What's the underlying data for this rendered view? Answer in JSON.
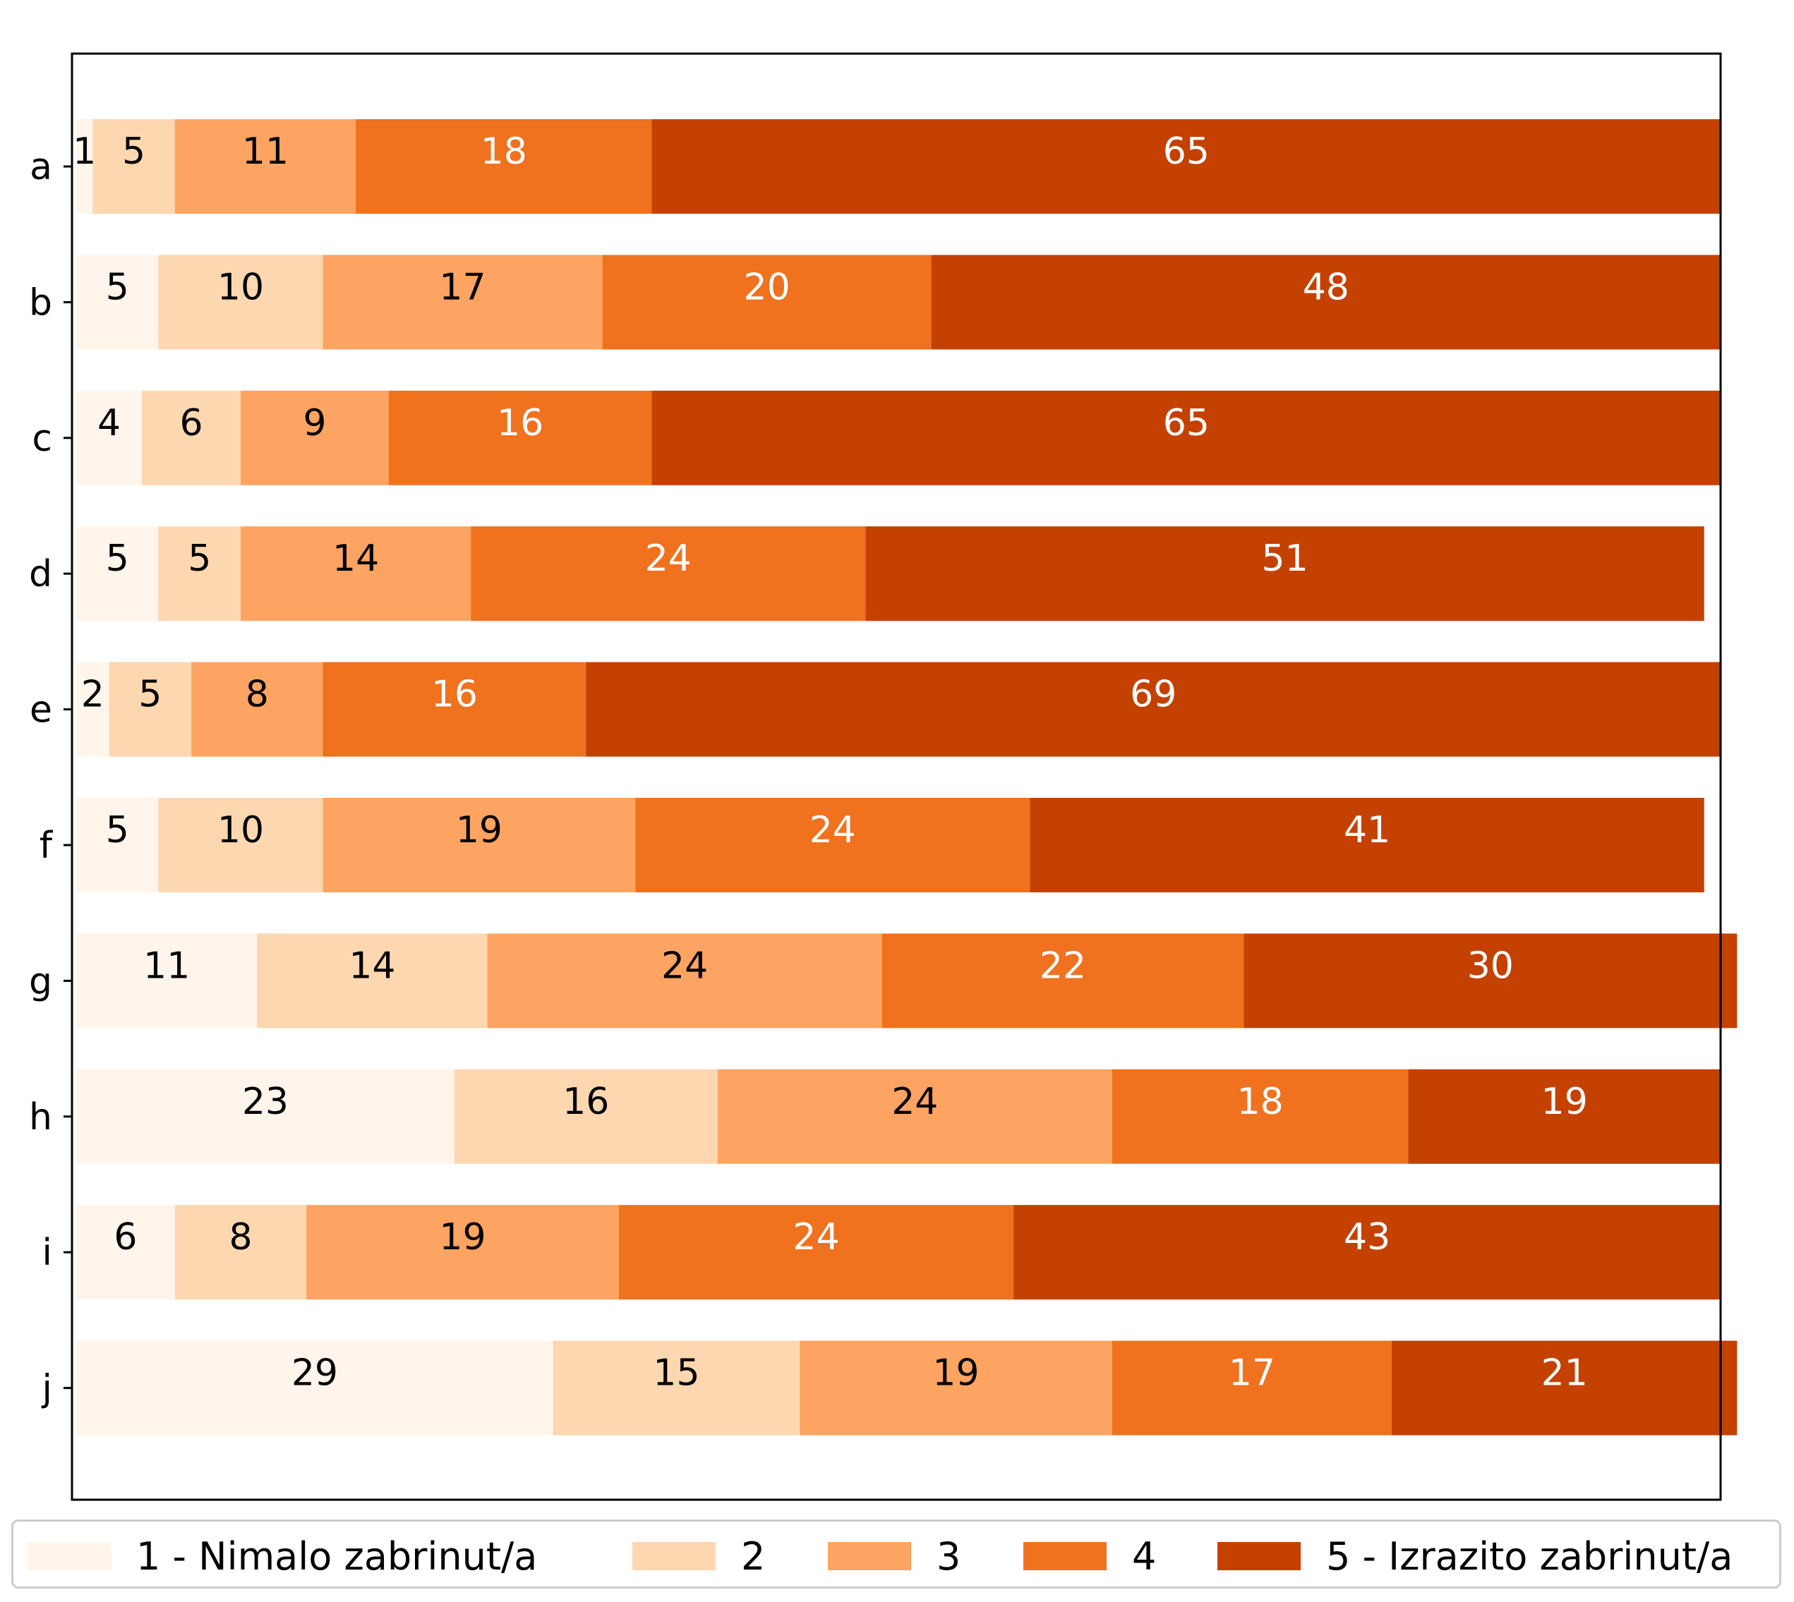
{
  "chart_data": {
    "type": "bar",
    "orientation": "horizontal",
    "stacked": true,
    "categories": [
      "a",
      "b",
      "c",
      "d",
      "e",
      "f",
      "g",
      "h",
      "i",
      "j"
    ],
    "series": [
      {
        "name": "1 - Nimalo zabrinut/a",
        "color": "#fff5eb",
        "label_color": "#000000",
        "values": [
          1,
          5,
          4,
          5,
          2,
          5,
          11,
          23,
          6,
          29
        ]
      },
      {
        "name": "2",
        "color": "#fdd7b0",
        "label_color": "#000000",
        "values": [
          5,
          10,
          6,
          5,
          5,
          10,
          14,
          16,
          8,
          15
        ]
      },
      {
        "name": "3",
        "color": "#fda462",
        "label_color": "#000000",
        "values": [
          11,
          17,
          9,
          14,
          8,
          19,
          24,
          24,
          19,
          19
        ]
      },
      {
        "name": "4",
        "color": "#f0711e",
        "label_color": "#ffffff",
        "values": [
          18,
          20,
          16,
          24,
          16,
          24,
          22,
          18,
          24,
          17
        ]
      },
      {
        "name": "5 - Izrazito zabrinut/a",
        "color": "#c44102",
        "label_color": "#ffffff",
        "values": [
          65,
          48,
          65,
          51,
          69,
          41,
          30,
          19,
          43,
          21
        ]
      }
    ],
    "xlim": [
      0,
      100
    ],
    "legend_position": "bottom",
    "grid": false
  }
}
